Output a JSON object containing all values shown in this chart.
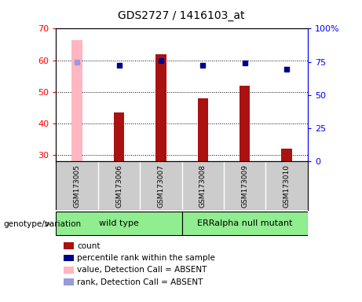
{
  "title": "GDS2727 / 1416103_at",
  "samples": [
    "GSM173005",
    "GSM173006",
    "GSM173007",
    "GSM173008",
    "GSM173009",
    "GSM173010"
  ],
  "count_values": [
    null,
    43.5,
    62.0,
    48.0,
    52.0,
    32.0
  ],
  "count_absent_value": 66.5,
  "count_absent_idx": 0,
  "percentile_values": [
    75.0,
    72.5,
    76.0,
    72.5,
    74.0,
    69.5
  ],
  "percentile_absent_idx": 0,
  "ylim_left": [
    28,
    70
  ],
  "ylim_right": [
    0,
    100
  ],
  "yticks_left": [
    30,
    40,
    50,
    60,
    70
  ],
  "yticks_right": [
    0,
    25,
    50,
    75,
    100
  ],
  "ytick_labels_right": [
    "0",
    "25",
    "50",
    "75",
    "100%"
  ],
  "wild_type_range": [
    0,
    3
  ],
  "mutant_range": [
    3,
    6
  ],
  "wild_type_label": "wild type",
  "mutant_label": "ERRalpha null mutant",
  "genotype_label": "genotype/variation",
  "bar_color": "#AA1111",
  "bar_absent_color": "#FFB6C1",
  "dot_color": "#00008B",
  "dot_absent_color": "#9999DD",
  "background_color": "#ffffff",
  "sample_bg_color": "#cccccc",
  "wild_type_bg": "#90EE90",
  "mutant_bg": "#90EE90",
  "legend_items": [
    {
      "label": "count",
      "color": "#AA1111"
    },
    {
      "label": "percentile rank within the sample",
      "color": "#00008B"
    },
    {
      "label": "value, Detection Call = ABSENT",
      "color": "#FFB6C1"
    },
    {
      "label": "rank, Detection Call = ABSENT",
      "color": "#9999DD"
    }
  ]
}
